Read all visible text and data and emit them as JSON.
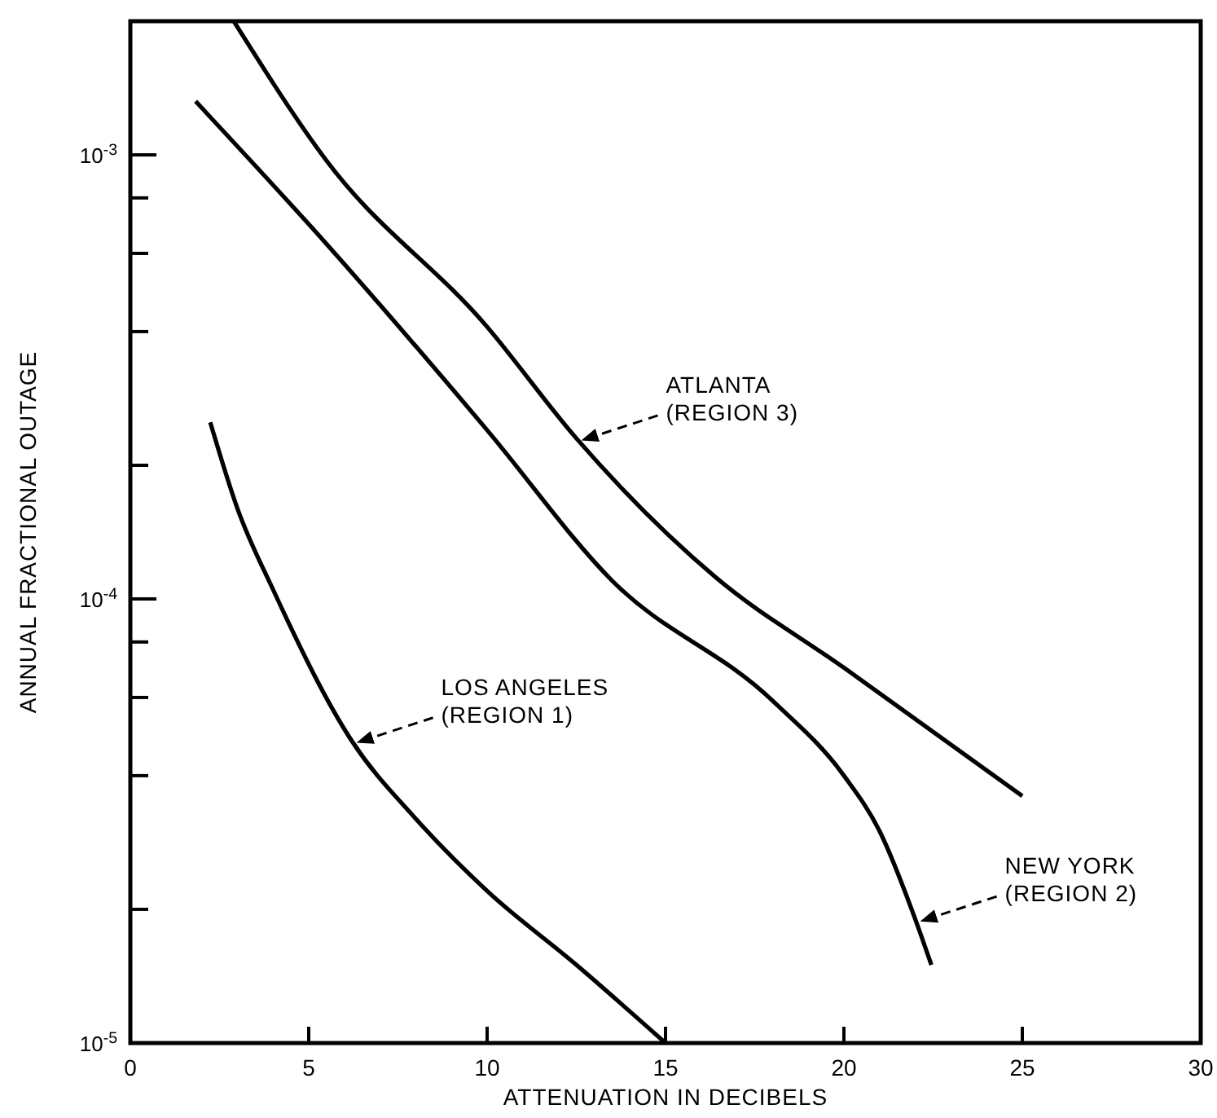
{
  "chart_data": {
    "type": "line",
    "xlabel": "ATTENUATION IN DECIBELS",
    "ylabel": "ANNUAL FRACTIONAL OUTAGE",
    "log": "y",
    "grid": false,
    "marker": "none",
    "line_style": "solid",
    "xlim": [
      0,
      30
    ],
    "xticks": [
      0,
      5,
      10,
      15,
      20,
      25,
      30
    ],
    "ylim": [
      1e-05,
      0.002
    ],
    "yticks": [
      {
        "value": 1e-05,
        "label": "10$^{-5}$"
      },
      {
        "value": 2e-05,
        "label": null
      },
      {
        "value": 4e-05,
        "label": null
      },
      {
        "value": 6e-05,
        "label": null
      },
      {
        "value": 8e-05,
        "label": null
      },
      {
        "value": 0.0001,
        "label": "10$^{-4}$"
      },
      {
        "value": 0.0002,
        "label": null
      },
      {
        "value": 0.0004,
        "label": null
      },
      {
        "value": 0.0006,
        "label": null
      },
      {
        "value": 0.0008,
        "label": null
      },
      {
        "value": 0.001,
        "label": "10$^{-3}$"
      }
    ],
    "series": [
      {
        "color": "#000000",
        "x": [
          2.9,
          5.5,
          10,
          12.5,
          16.4,
          20,
          25
        ],
        "values": [
          0.002,
          0.00097,
          0.00041,
          0.00023,
          0.000112,
          7e-05,
          3.6e-05
        ]
      },
      {
        "color": "#000000",
        "x": [
          1.83,
          5.5,
          10,
          13.5,
          18,
          20,
          21,
          22,
          22.45
        ],
        "values": [
          0.00132,
          0.00063,
          0.00024,
          0.00011,
          5.9e-05,
          4e-05,
          3e-05,
          1.9e-05,
          1.5e-05
        ]
      },
      {
        "color": "#000000",
        "x": [
          2.24,
          3,
          4,
          6.2,
          8,
          10,
          12.5,
          15
        ],
        "values": [
          0.00025,
          0.00016,
          0.000105,
          4.8e-05,
          3.2e-05,
          2.2e-05,
          1.5e-05,
          1e-05
        ]
      }
    ],
    "annotations": [
      {
        "text": "ATLANTA\n(REGION 3)",
        "x": 12.5,
        "y": 0.00023
      },
      {
        "text": "NEW YORK\n(REGION 2)",
        "x": 22,
        "y": 1.9e-05
      },
      {
        "text": "LOS ANGELES\n(REGION 1)",
        "x": 6.2,
        "y": 4.8e-05
      }
    ]
  }
}
